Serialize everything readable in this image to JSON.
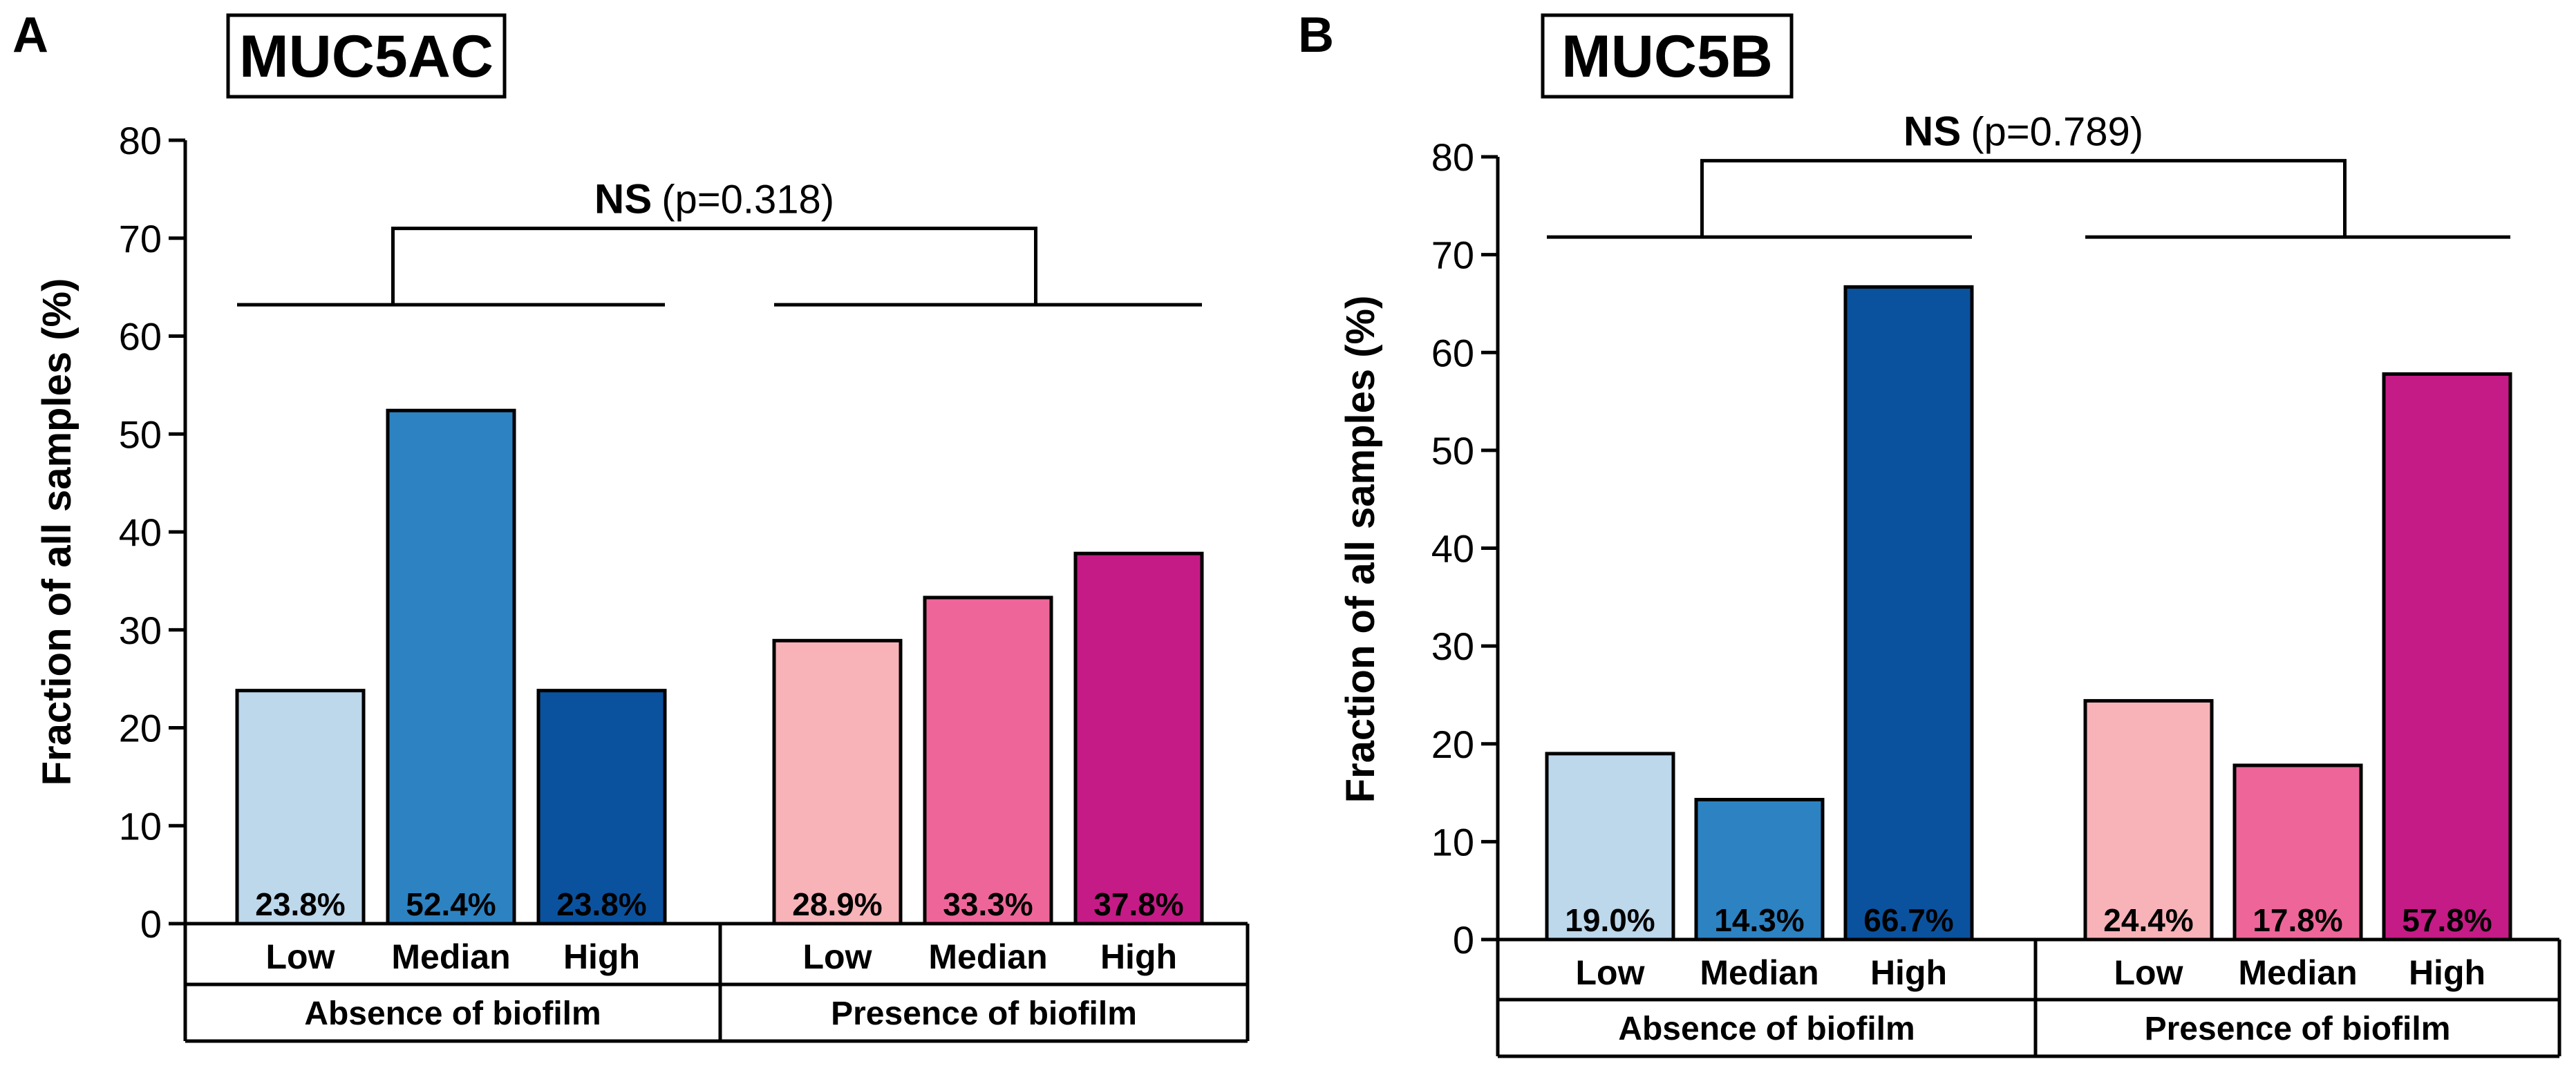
{
  "chart_data": [
    {
      "panel": "A",
      "type": "bar",
      "title": "MUC5AC",
      "ylabel": "Fraction of all samples (%)",
      "ylim": [
        0,
        80
      ],
      "yticks": [
        0,
        10,
        20,
        30,
        40,
        50,
        60,
        70,
        80
      ],
      "groups": [
        "Absence of biofilm",
        "Presence of biofilm"
      ],
      "categories": [
        "Low",
        "Median",
        "High"
      ],
      "series": [
        {
          "group": "Absence of biofilm",
          "values": [
            23.8,
            52.4,
            23.8
          ],
          "labels": [
            "23.8%",
            "52.4%",
            "23.8%"
          ],
          "colors": [
            "#bdd7eb",
            "#2d82c2",
            "#0b529e"
          ]
        },
        {
          "group": "Presence of biofilm",
          "values": [
            28.9,
            33.3,
            37.8
          ],
          "labels": [
            "28.9%",
            "33.3%",
            "37.8%"
          ],
          "colors": [
            "#f7b3b8",
            "#ee6699",
            "#c51b86"
          ]
        }
      ],
      "annotation": {
        "ns": "NS",
        "p": "(p=0.318)"
      }
    },
    {
      "panel": "B",
      "type": "bar",
      "title": "MUC5B",
      "ylabel": "Fraction of all samples (%)",
      "ylim": [
        0,
        80
      ],
      "yticks": [
        0,
        10,
        20,
        30,
        40,
        50,
        60,
        70,
        80
      ],
      "groups": [
        "Absence of biofilm",
        "Presence of biofilm"
      ],
      "categories": [
        "Low",
        "Median",
        "High"
      ],
      "series": [
        {
          "group": "Absence of biofilm",
          "values": [
            19.0,
            14.3,
            66.7
          ],
          "labels": [
            "19.0%",
            "14.3%",
            "66.7%"
          ],
          "colors": [
            "#bdd7eb",
            "#2d82c2",
            "#0b529e"
          ]
        },
        {
          "group": "Presence of biofilm",
          "values": [
            24.4,
            17.8,
            57.8
          ],
          "labels": [
            "24.4%",
            "17.8%",
            "57.8%"
          ],
          "colors": [
            "#f7b3b8",
            "#ee6699",
            "#c51b86"
          ]
        }
      ],
      "annotation": {
        "ns": "NS",
        "p": "(p=0.789)"
      }
    }
  ]
}
